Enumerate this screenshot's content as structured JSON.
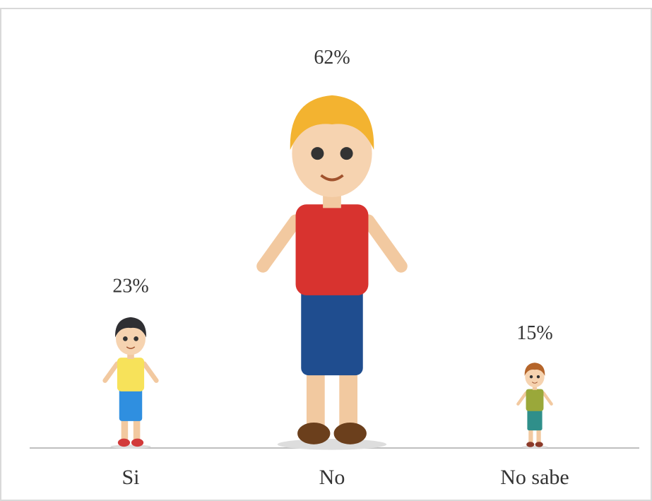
{
  "chart_data": {
    "type": "pictograph",
    "categories": [
      "Si",
      "No",
      "No sabe"
    ],
    "values": [
      23,
      62,
      15
    ],
    "value_labels": [
      "23%",
      "62%",
      "15%"
    ]
  }
}
